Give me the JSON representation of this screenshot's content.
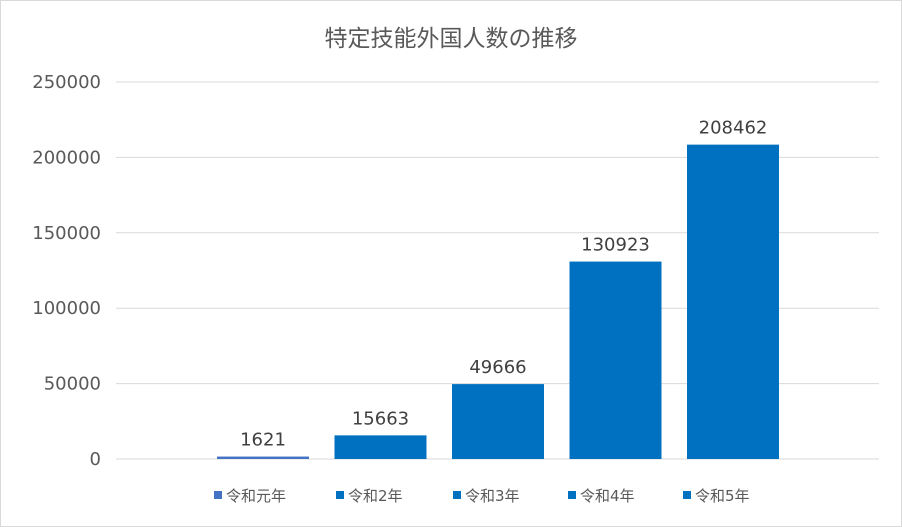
{
  "chart_data": {
    "type": "bar",
    "title": "特定技能外国人数の推移",
    "categories": [
      "令和元年",
      "令和2年",
      "令和3年",
      "令和4年",
      "令和5年"
    ],
    "values": [
      1621,
      15663,
      49666,
      130923,
      208462
    ],
    "ylim": [
      0,
      250000
    ],
    "yticks": [
      0,
      50000,
      100000,
      150000,
      200000,
      250000
    ],
    "grid": true,
    "legend": "bottom",
    "colors": [
      "#4472C4",
      "#0070C0",
      "#0070C0",
      "#0070C0",
      "#0070C0"
    ]
  }
}
